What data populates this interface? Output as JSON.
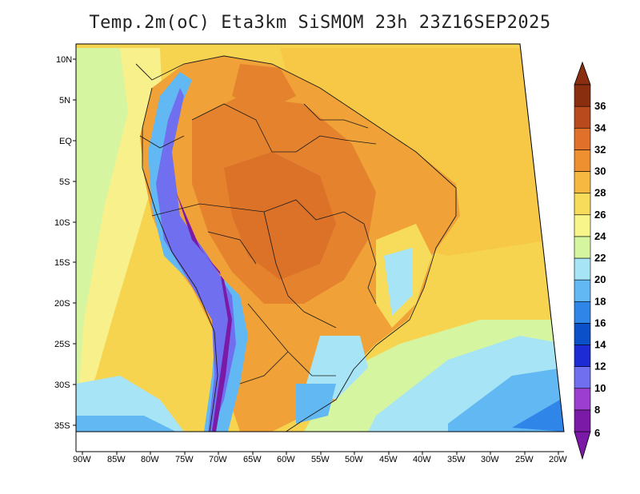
{
  "title": "Temp.2m(oC) Eta3km SiSMOM 23h 23Z16SEP2025",
  "map": {
    "variable": "2 m temperature",
    "units": "oC",
    "lat_labels": [
      "10N",
      "5N",
      "EQ",
      "5S",
      "10S",
      "15S",
      "20S",
      "25S",
      "30S",
      "35S"
    ],
    "lon_labels": [
      "90W",
      "85W",
      "80W",
      "75W",
      "70W",
      "65W",
      "60W",
      "55W",
      "50W",
      "45W",
      "40W",
      "35W",
      "30W",
      "25W",
      "20W"
    ]
  },
  "colorbar": {
    "labels": [
      "6",
      "8",
      "10",
      "12",
      "14",
      "16",
      "18",
      "20",
      "22",
      "24",
      "26",
      "28",
      "30",
      "32",
      "34",
      "36"
    ],
    "colors": [
      "#7a1aa6",
      "#9c3fd0",
      "#6f6ff0",
      "#1c2bd4",
      "#0b50c8",
      "#2f86e8",
      "#62b8f2",
      "#a6e4f6",
      "#d6f5a0",
      "#f8f58a",
      "#f6dc5a",
      "#f6b840",
      "#ef9030",
      "#e0702a",
      "#b84a1e",
      "#8a2e10"
    ]
  }
}
